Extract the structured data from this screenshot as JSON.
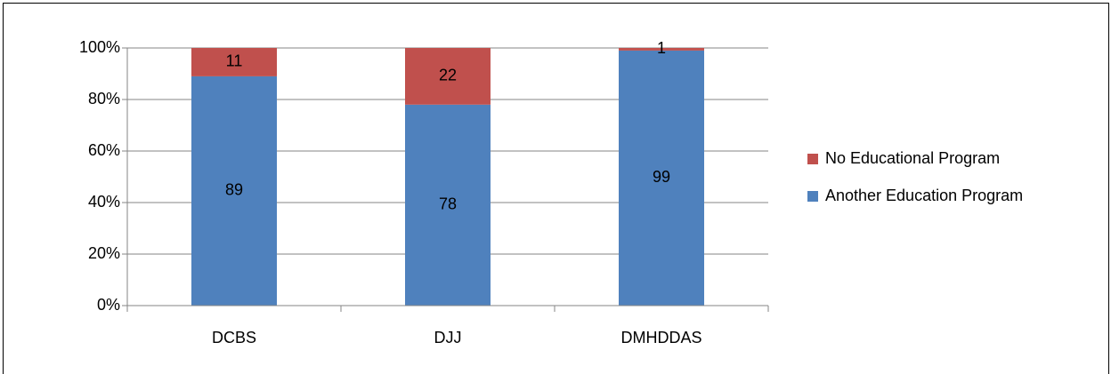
{
  "chart_data": {
    "type": "stacked_bar",
    "categories": [
      "DCBS",
      "DJJ",
      "DMHDDAS"
    ],
    "series": [
      {
        "name": "Another Education Program",
        "color": "#4f81bd",
        "values": [
          89,
          78,
          99
        ]
      },
      {
        "name": "No Educational Program",
        "color": "#c0504d",
        "values": [
          11,
          22,
          1
        ]
      }
    ],
    "ylim": [
      0,
      100
    ],
    "yticks": [
      {
        "value": 0,
        "label": "0%"
      },
      {
        "value": 20,
        "label": "20%"
      },
      {
        "value": 40,
        "label": "40%"
      },
      {
        "value": 60,
        "label": "60%"
      },
      {
        "value": 80,
        "label": "80%"
      },
      {
        "value": 100,
        "label": "100%"
      }
    ],
    "grid": true,
    "legend": "right"
  }
}
